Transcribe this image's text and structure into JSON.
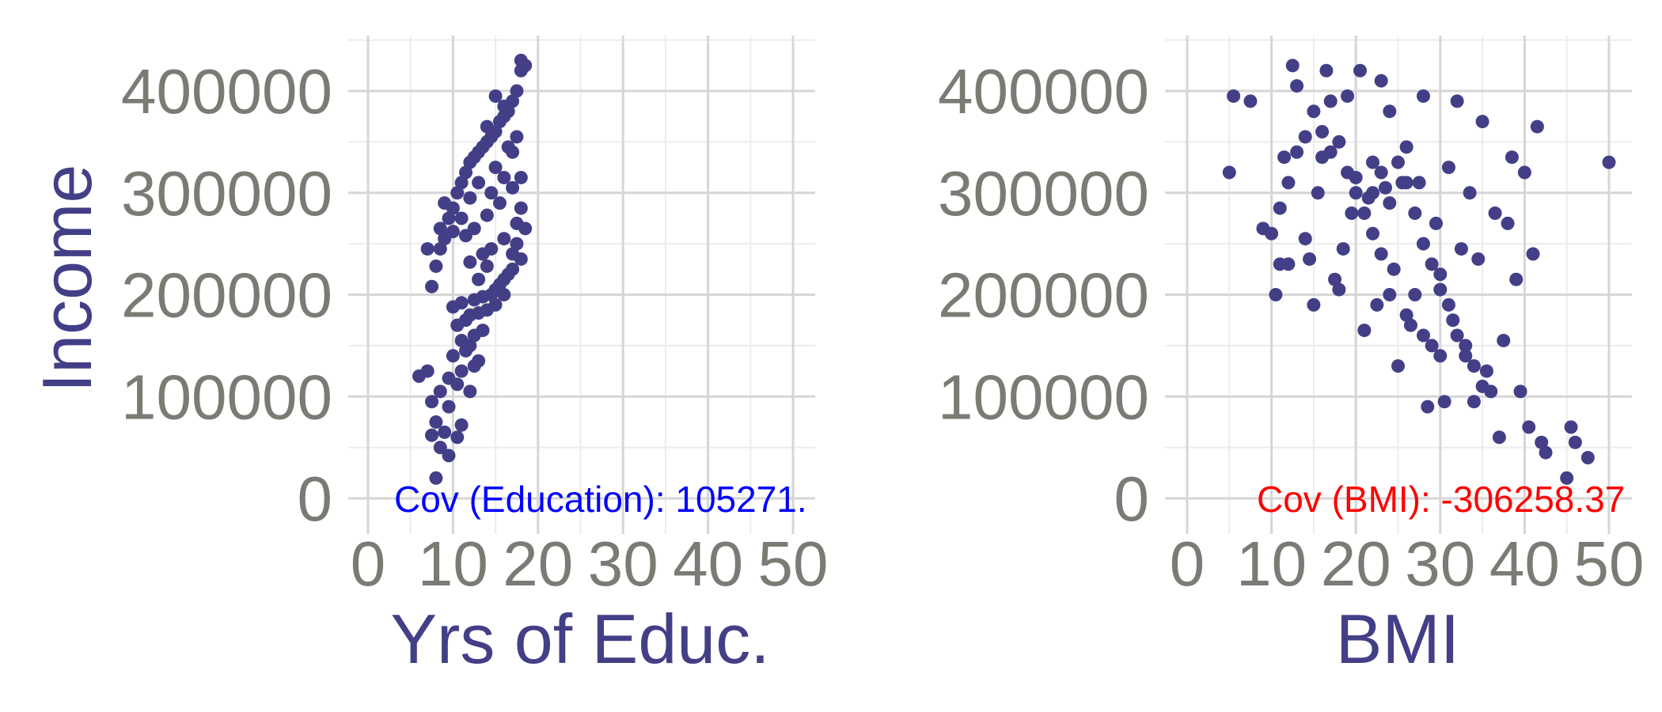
{
  "chart_data": [
    {
      "type": "scatter",
      "xlabel": "Yrs of Educ.",
      "ylabel": "Income",
      "xlim": [
        0,
        50
      ],
      "ylim": [
        0,
        430000
      ],
      "x_ticks": [
        "0",
        "10",
        "20",
        "30",
        "40",
        "50"
      ],
      "y_ticks": [
        "0",
        "100000",
        "200000",
        "300000",
        "400000"
      ],
      "grid": true,
      "point_color": "#433f87",
      "annotation": {
        "text": "Cov (Education): 105271.",
        "color": "#0000ff",
        "x": 3,
        "y": 0
      },
      "series": [
        {
          "points": [
            [
              8,
              20000
            ],
            [
              9.5,
              42000
            ],
            [
              8.5,
              50000
            ],
            [
              10.5,
              60000
            ],
            [
              9,
              65000
            ],
            [
              7.5,
              62000
            ],
            [
              11,
              72000
            ],
            [
              8,
              75000
            ],
            [
              9.5,
              90000
            ],
            [
              7.5,
              95000
            ],
            [
              8.5,
              105000
            ],
            [
              6,
              120000
            ],
            [
              7,
              125000
            ],
            [
              9.5,
              118000
            ],
            [
              10.5,
              112000
            ],
            [
              11,
              125000
            ],
            [
              12,
              105000
            ],
            [
              12.5,
              130000
            ],
            [
              13,
              135000
            ],
            [
              10,
              140000
            ],
            [
              11.5,
              145000
            ],
            [
              12,
              150000
            ],
            [
              11,
              155000
            ],
            [
              12.5,
              160000
            ],
            [
              13.5,
              165000
            ],
            [
              10.5,
              170000
            ],
            [
              11.5,
              175000
            ],
            [
              12,
              180000
            ],
            [
              13,
              182000
            ],
            [
              14,
              185000
            ],
            [
              10,
              188000
            ],
            [
              11,
              192000
            ],
            [
              12.5,
              195000
            ],
            [
              13.5,
              198000
            ],
            [
              14.5,
              200000
            ],
            [
              15,
              205000
            ],
            [
              15.5,
              210000
            ],
            [
              16,
              215000
            ],
            [
              16.5,
              220000
            ],
            [
              17,
              225000
            ],
            [
              14,
              228000
            ],
            [
              13,
              215000
            ],
            [
              15,
              190000
            ],
            [
              16,
              200000
            ],
            [
              17,
              240000
            ],
            [
              17.5,
              250000
            ],
            [
              18,
              235000
            ],
            [
              18.5,
              265000
            ],
            [
              13.5,
              240000
            ],
            [
              12,
              232000
            ],
            [
              14.5,
              245000
            ],
            [
              16,
              255000
            ],
            [
              17.5,
              270000
            ],
            [
              18,
              285000
            ],
            [
              15.5,
              290000
            ],
            [
              7.5,
              208000
            ],
            [
              8,
              228000
            ],
            [
              8.5,
              245000
            ],
            [
              9,
              255000
            ],
            [
              7,
              245000
            ],
            [
              8.5,
              265000
            ],
            [
              9.5,
              275000
            ],
            [
              10,
              285000
            ],
            [
              9,
              290000
            ],
            [
              10.5,
              300000
            ],
            [
              11,
              310000
            ],
            [
              11.5,
              320000
            ],
            [
              12,
              330000
            ],
            [
              12.5,
              335000
            ],
            [
              13,
              340000
            ],
            [
              13.5,
              345000
            ],
            [
              14,
              350000
            ],
            [
              14.5,
              355000
            ],
            [
              15,
              360000
            ],
            [
              15.5,
              370000
            ],
            [
              16,
              375000
            ],
            [
              16.5,
              380000
            ],
            [
              17,
              390000
            ],
            [
              17.5,
              400000
            ],
            [
              18,
              420000
            ],
            [
              18.5,
              425000
            ],
            [
              18,
              430000
            ],
            [
              15,
              395000
            ],
            [
              16,
              385000
            ],
            [
              14,
              365000
            ],
            [
              13,
              310000
            ],
            [
              12,
              295000
            ],
            [
              11,
              275000
            ],
            [
              10,
              262000
            ],
            [
              17,
              340000
            ],
            [
              17.5,
              355000
            ],
            [
              16.5,
              345000
            ],
            [
              15,
              325000
            ],
            [
              16,
              315000
            ],
            [
              14.5,
              300000
            ],
            [
              18,
              315000
            ],
            [
              17,
              305000
            ],
            [
              14,
              278000
            ],
            [
              12.5,
              265000
            ],
            [
              11.5,
              258000
            ]
          ]
        }
      ]
    },
    {
      "type": "scatter",
      "xlabel": "BMI",
      "ylabel": "",
      "xlim": [
        0,
        50
      ],
      "ylim": [
        0,
        430000
      ],
      "x_ticks": [
        "0",
        "10",
        "20",
        "30",
        "40",
        "50"
      ],
      "y_ticks": [
        "0",
        "100000",
        "200000",
        "300000",
        "400000"
      ],
      "grid": true,
      "point_color": "#433f87",
      "annotation": {
        "text": "Cov (BMI): -306258.37",
        "color": "#ff0000",
        "x": 8,
        "y": 0
      },
      "series": [
        {
          "points": [
            [
              5,
              320000
            ],
            [
              5.5,
              395000
            ],
            [
              7.5,
              390000
            ],
            [
              9,
              265000
            ],
            [
              10,
              260000
            ],
            [
              10.5,
              200000
            ],
            [
              11,
              285000
            ],
            [
              11.5,
              335000
            ],
            [
              12,
              230000
            ],
            [
              12.5,
              425000
            ],
            [
              13,
              405000
            ],
            [
              14,
              255000
            ],
            [
              14.5,
              235000
            ],
            [
              15,
              190000
            ],
            [
              15.5,
              300000
            ],
            [
              16,
              335000
            ],
            [
              16.5,
              420000
            ],
            [
              17,
              390000
            ],
            [
              17.5,
              215000
            ],
            [
              18,
              205000
            ],
            [
              18.5,
              245000
            ],
            [
              19,
              395000
            ],
            [
              19.5,
              280000
            ],
            [
              20,
              315000
            ],
            [
              20.5,
              420000
            ],
            [
              21,
              165000
            ],
            [
              21.5,
              295000
            ],
            [
              22,
              330000
            ],
            [
              22.5,
              190000
            ],
            [
              23,
              410000
            ],
            [
              23.5,
              305000
            ],
            [
              24,
              380000
            ],
            [
              24.5,
              225000
            ],
            [
              25,
              130000
            ],
            [
              25.5,
              310000
            ],
            [
              26,
              345000
            ],
            [
              26.5,
              170000
            ],
            [
              27,
              200000
            ],
            [
              27.5,
              310000
            ],
            [
              28,
              395000
            ],
            [
              28.5,
              90000
            ],
            [
              29,
              150000
            ],
            [
              29.5,
              270000
            ],
            [
              30,
              205000
            ],
            [
              30.5,
              95000
            ],
            [
              31,
              325000
            ],
            [
              31.5,
              175000
            ],
            [
              32,
              390000
            ],
            [
              32.5,
              245000
            ],
            [
              33,
              140000
            ],
            [
              33.5,
              300000
            ],
            [
              34,
              95000
            ],
            [
              34.5,
              235000
            ],
            [
              35,
              370000
            ],
            [
              35.5,
              125000
            ],
            [
              36,
              105000
            ],
            [
              36.5,
              280000
            ],
            [
              37,
              60000
            ],
            [
              37.5,
              155000
            ],
            [
              38,
              270000
            ],
            [
              38.5,
              335000
            ],
            [
              39,
              215000
            ],
            [
              39.5,
              105000
            ],
            [
              40,
              320000
            ],
            [
              40.5,
              70000
            ],
            [
              41,
              240000
            ],
            [
              41.5,
              365000
            ],
            [
              42,
              55000
            ],
            [
              42.5,
              45000
            ],
            [
              45,
              20000
            ],
            [
              45.5,
              70000
            ],
            [
              46,
              55000
            ],
            [
              47.5,
              40000
            ],
            [
              50,
              330000
            ],
            [
              22,
              300000
            ],
            [
              23,
              320000
            ],
            [
              24,
              290000
            ],
            [
              25,
              330000
            ],
            [
              26,
              310000
            ],
            [
              27,
              280000
            ],
            [
              28,
              250000
            ],
            [
              29,
              230000
            ],
            [
              30,
              220000
            ],
            [
              31,
              190000
            ],
            [
              32,
              160000
            ],
            [
              33,
              150000
            ],
            [
              34,
              130000
            ],
            [
              35,
              110000
            ],
            [
              24,
              200000
            ],
            [
              26,
              180000
            ],
            [
              28,
              160000
            ],
            [
              30,
              140000
            ],
            [
              20,
              300000
            ],
            [
              21,
              280000
            ],
            [
              22,
              260000
            ],
            [
              23,
              240000
            ],
            [
              19,
              320000
            ],
            [
              18,
              350000
            ],
            [
              17,
              340000
            ],
            [
              16,
              360000
            ],
            [
              15,
              380000
            ],
            [
              14,
              355000
            ],
            [
              13,
              340000
            ],
            [
              12,
              310000
            ],
            [
              11,
              230000
            ]
          ]
        }
      ]
    }
  ]
}
